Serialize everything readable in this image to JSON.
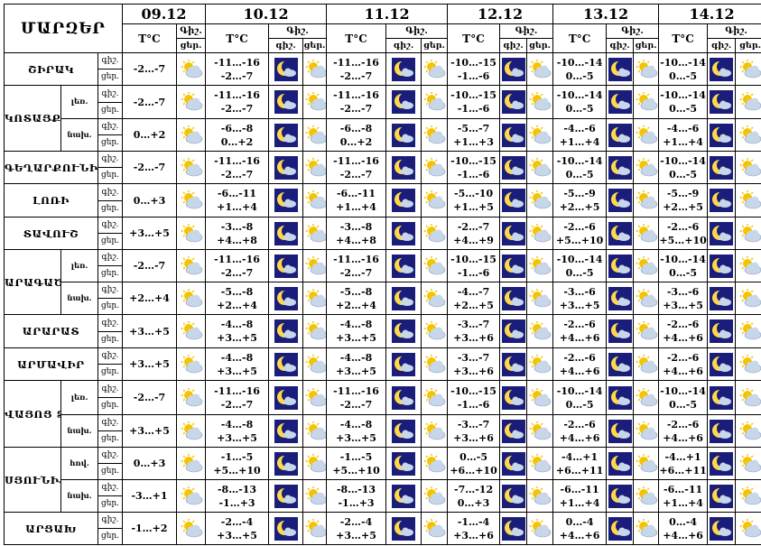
{
  "title": "ՄԱՐԶԵՐ",
  "dates": [
    "09.12",
    "10.12",
    "11.12",
    "12.12",
    "13.12",
    "14.12"
  ],
  "labels": {
    "temp": "T°C",
    "night": "Գիշ.",
    "day": "ցեր.",
    "tod_night": "գիշ.",
    "tod_day": "ցեր.",
    "col_night": "գիշ.",
    "col_day": "ցեր."
  },
  "rows": [
    {
      "region": "ՇԻՐԱԿ",
      "sub": null,
      "t0": "-2…-7",
      "tn": [
        [
          "-11…-16",
          "-2…-7"
        ],
        [
          "-11…-16",
          "-2…-7"
        ],
        [
          "-10…-15",
          "-1…-6"
        ],
        [
          "-10…-14",
          "0…-5"
        ],
        [
          "-10…-14",
          "0…-5"
        ]
      ]
    },
    {
      "region": "ԿՈՏԱՅՔ",
      "sub": "լեռ.",
      "t0": "-2…-7",
      "tn": [
        [
          "-11…-16",
          "-2…-7"
        ],
        [
          "-11…-16",
          "-2…-7"
        ],
        [
          "-10…-15",
          "-1…-6"
        ],
        [
          "-10…-14",
          "0…-5"
        ],
        [
          "-10…-14",
          "0…-5"
        ]
      ]
    },
    {
      "region": null,
      "sub": "նախ.",
      "t0": "0…+2",
      "tn": [
        [
          "-6…-8",
          "0…+2"
        ],
        [
          "-6…-8",
          "0…+2"
        ],
        [
          "-5…-7",
          "+1…+3"
        ],
        [
          "-4…-6",
          "+1…+4"
        ],
        [
          "-4…-6",
          "+1…+4"
        ]
      ]
    },
    {
      "region": "ԳԵՂԱՐՔՈՒՆԻՔ",
      "sub": null,
      "t0": "-2…-7",
      "tn": [
        [
          "-11…-16",
          "-2…-7"
        ],
        [
          "-11…-16",
          "-2…-7"
        ],
        [
          "-10…-15",
          "-1…-6"
        ],
        [
          "-10…-14",
          "0…-5"
        ],
        [
          "-10…-14",
          "0…-5"
        ]
      ]
    },
    {
      "region": "ԼՈՌԻ",
      "sub": null,
      "t0": "0…+3",
      "tn": [
        [
          "-6…-11",
          "+1…+4"
        ],
        [
          "-6…-11",
          "+1…+4"
        ],
        [
          "-5…-10",
          "+1…+5"
        ],
        [
          "-5…-9",
          "+2…+5"
        ],
        [
          "-5…-9",
          "+2…+5"
        ]
      ]
    },
    {
      "region": "ՏԱՎՈՒՇ",
      "sub": null,
      "t0": "+3…+5",
      "tn": [
        [
          "-3…-8",
          "+4…+8"
        ],
        [
          "-3…-8",
          "+4…+8"
        ],
        [
          "-2…-7",
          "+4…+9"
        ],
        [
          "-2…-6",
          "+5…+10"
        ],
        [
          "-2…-6",
          "+5…+10"
        ]
      ]
    },
    {
      "region": "ԱՐԱԳԱԾՈՏՆ",
      "sub": "լեռ.",
      "t0": "-2…-7",
      "tn": [
        [
          "-11…-16",
          "-2…-7"
        ],
        [
          "-11…-16",
          "-2…-7"
        ],
        [
          "-10…-15",
          "-1…-6"
        ],
        [
          "-10…-14",
          "0…-5"
        ],
        [
          "-10…-14",
          "0…-5"
        ]
      ]
    },
    {
      "region": null,
      "sub": "նախ.",
      "t0": "+2…+4",
      "tn": [
        [
          "-5…-8",
          "+2…+4"
        ],
        [
          "-5…-8",
          "+2…+4"
        ],
        [
          "-4…-7",
          "+2…+5"
        ],
        [
          "-3…-6",
          "+3…+5"
        ],
        [
          "-3…-6",
          "+3…+5"
        ]
      ]
    },
    {
      "region": "ԱՐԱՐԱՏ",
      "sub": null,
      "t0": "+3…+5",
      "tn": [
        [
          "-4…-8",
          "+3…+5"
        ],
        [
          "-4…-8",
          "+3…+5"
        ],
        [
          "-3…-7",
          "+3…+6"
        ],
        [
          "-2…-6",
          "+4…+6"
        ],
        [
          "-2…-6",
          "+4…+6"
        ]
      ]
    },
    {
      "region": "ԱՐՄԱՎԻՐ",
      "sub": null,
      "t0": "+3…+5",
      "tn": [
        [
          "-4…-8",
          "+3…+5"
        ],
        [
          "-4…-8",
          "+3…+5"
        ],
        [
          "-3…-7",
          "+3…+6"
        ],
        [
          "-2…-6",
          "+4…+6"
        ],
        [
          "-2…-6",
          "+4…+6"
        ]
      ]
    },
    {
      "region": "ՎԱՅՈՑ ՁՈՐ",
      "sub": "լեռ.",
      "t0": "-2…-7",
      "tn": [
        [
          "-11…-16",
          "-2…-7"
        ],
        [
          "-11…-16",
          "-2…-7"
        ],
        [
          "-10…-15",
          "-1…-6"
        ],
        [
          "-10…-14",
          "0…-5"
        ],
        [
          "-10…-14",
          "0…-5"
        ]
      ]
    },
    {
      "region": null,
      "sub": "նախ.",
      "t0": "+3…+5",
      "tn": [
        [
          "-4…-8",
          "+3…+5"
        ],
        [
          "-4…-8",
          "+3…+5"
        ],
        [
          "-3…-7",
          "+3…+6"
        ],
        [
          "-2…-6",
          "+4…+6"
        ],
        [
          "-2…-6",
          "+4…+6"
        ]
      ]
    },
    {
      "region": "ՍՅՈՒՆԻՔ",
      "sub": "հով.",
      "t0": "0…+3",
      "tn": [
        [
          "-1…-5",
          "+5…+10"
        ],
        [
          "-1…-5",
          "+5…+10"
        ],
        [
          "0…-5",
          "+6…+10"
        ],
        [
          "-4…+1",
          "+6…+11"
        ],
        [
          "-4…+1",
          "+6…+11"
        ]
      ]
    },
    {
      "region": null,
      "sub": "նախ.",
      "t0": "-3…+1",
      "tn": [
        [
          "-8…-13",
          "-1…+3"
        ],
        [
          "-8…-13",
          "-1…+3"
        ],
        [
          "-7…-12",
          "0…+3"
        ],
        [
          "-6…-11",
          "+1…+4"
        ],
        [
          "-6…-11",
          "+1…+4"
        ]
      ]
    },
    {
      "region": "ԱՐՑԱԽ",
      "sub": null,
      "t0": "-1…+2",
      "tn": [
        [
          "-2…-4",
          "+3…+5"
        ],
        [
          "-2…-4",
          "+3…+5"
        ],
        [
          "-1…-4",
          "+3…+6"
        ],
        [
          "0…-4",
          "+4…+6"
        ],
        [
          "0…-4",
          "+4…+6"
        ]
      ]
    }
  ],
  "icons": {
    "day": "partly-cloudy-day-icon",
    "night": "crescent-moon-cloud-night-icon"
  },
  "colors": {
    "night_bg": "#1a1e7a",
    "sun": "#f5c400",
    "moon": "#ffd84a",
    "cloud": "#c8d6ea"
  }
}
